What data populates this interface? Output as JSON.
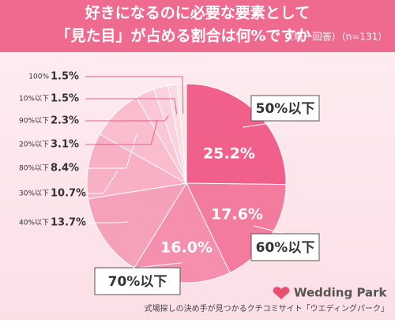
{
  "chart_data": {
    "type": "pie",
    "title": [
      "好きになるのに必要な要素として",
      "「見た目」が占める割合は何%ですか"
    ],
    "subtitle": "（単一回答）（n=131）",
    "categories": [
      "50%以下",
      "60%以下",
      "70%以下",
      "40%以下",
      "30%以下",
      "80%以下",
      "20%以下",
      "90%以下",
      "10%以下",
      "100%"
    ],
    "values": [
      25.2,
      17.6,
      16.0,
      13.7,
      10.7,
      8.4,
      3.1,
      2.3,
      1.5,
      1.5
    ],
    "value_labels": [
      "25.2%",
      "17.6%",
      "16.0%",
      "13.7%",
      "10.7%",
      "8.4%",
      "3.1%",
      "2.3%",
      "1.5%",
      "1.5%"
    ],
    "colors": [
      "#f0608a",
      "#f27b9e",
      "#f48fad",
      "#f5a1b9",
      "#f7b0c4",
      "#f9bdce",
      "#fac7d6",
      "#fbd1dd",
      "#fcdae4",
      "#fde4eb"
    ]
  },
  "footer": {
    "logo": "Wedding Park",
    "caption": "式場探しの決め手が見つかるクチコミサイト「ウエディングパーク」"
  }
}
